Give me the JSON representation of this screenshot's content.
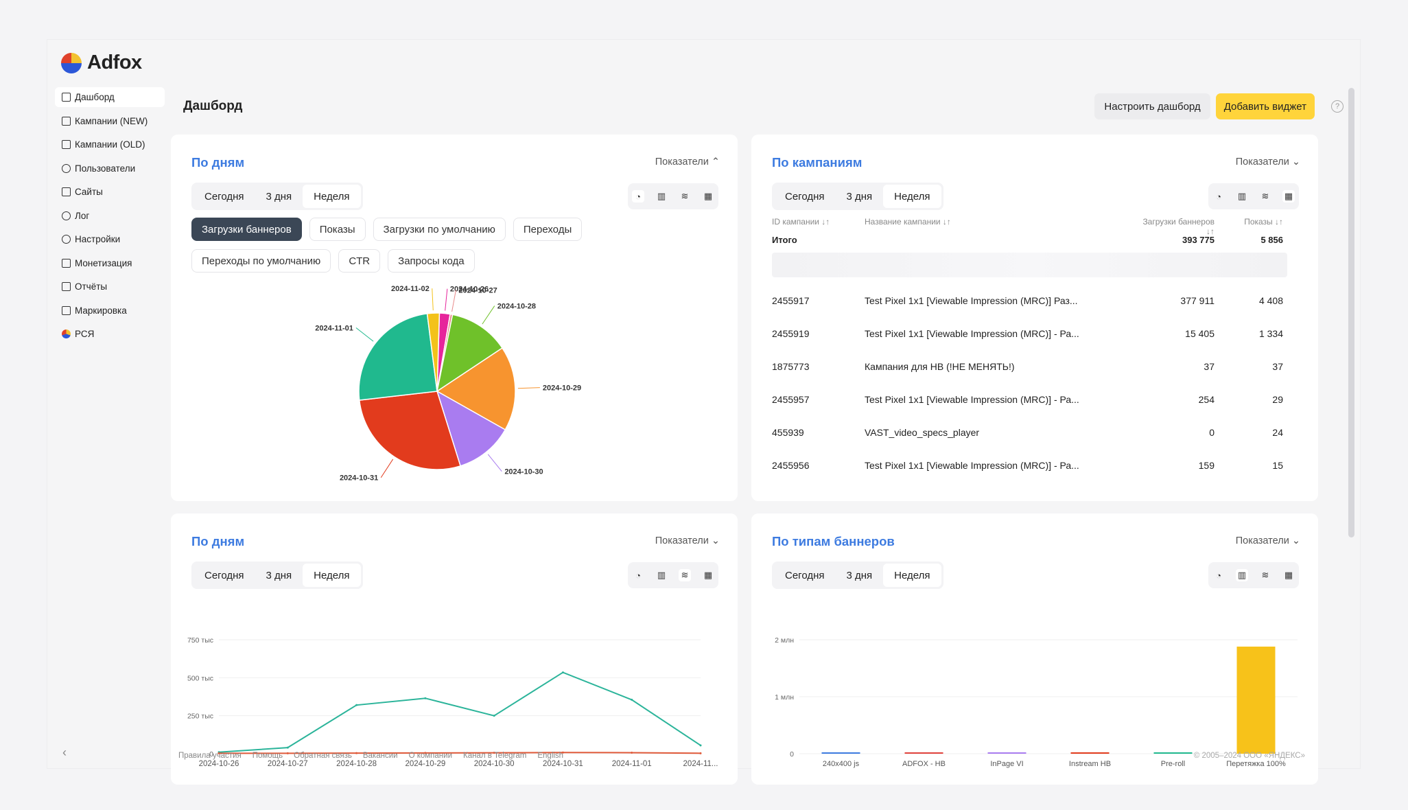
{
  "brand": {
    "name": "Adfox"
  },
  "sidebar": {
    "items": [
      {
        "label": "Дашборд",
        "icon": "dashboard-icon"
      },
      {
        "label": "Кампании (NEW)",
        "icon": "campaigns-icon"
      },
      {
        "label": "Кампании (OLD)",
        "icon": "folder-icon"
      },
      {
        "label": "Пользователи",
        "icon": "user-icon"
      },
      {
        "label": "Сайты",
        "icon": "sites-icon"
      },
      {
        "label": "Лог",
        "icon": "clock-icon"
      },
      {
        "label": "Настройки",
        "icon": "gear-icon"
      },
      {
        "label": "Монетизация",
        "icon": "wallet-icon"
      },
      {
        "label": "Отчёты",
        "icon": "reports-icon"
      },
      {
        "label": "Маркировка",
        "icon": "tag-icon"
      },
      {
        "label": "РСЯ",
        "icon": "rsya-icon"
      }
    ]
  },
  "header": {
    "title": "Дашборд",
    "setup_label": "Настроить дашборд",
    "add_label": "Добавить виджет",
    "help": "?"
  },
  "periods": [
    "Сегодня",
    "3 дня",
    "Неделя"
  ],
  "metrics_label": "Показатели",
  "widgets": {
    "pie": {
      "title": "По дням",
      "chips": [
        "Загрузки баннеров",
        "Показы",
        "Загрузки по умолчанию",
        "Переходы",
        "Переходы по умолчанию",
        "CTR",
        "Запросы кода"
      ]
    },
    "campaigns": {
      "title": "По кампаниям",
      "columns": [
        "ID кампании ↓↑",
        "Название кампании ↓↑",
        "Загрузки баннеров ↓↑",
        "Показы ↓↑"
      ],
      "total": {
        "label": "Итого",
        "loads": "393 775",
        "shows": "5 856"
      },
      "rows": [
        {
          "id": "2455917",
          "name": "Test Pixel 1x1 [Viewable Impression (MRC)] Раз...",
          "loads": "377 911",
          "shows": "4 408"
        },
        {
          "id": "2455919",
          "name": "Test Pixel 1x1 [Viewable Impression (MRC)] - Ра...",
          "loads": "15 405",
          "shows": "1 334"
        },
        {
          "id": "1875773",
          "name": "Кампания для НВ (!НЕ МЕНЯТЬ!)",
          "loads": "37",
          "shows": "37"
        },
        {
          "id": "2455957",
          "name": "Test Pixel 1x1 [Viewable Impression (MRC)] - Ра...",
          "loads": "254",
          "shows": "29"
        },
        {
          "id": "455939",
          "name": "VAST_video_specs_player",
          "loads": "0",
          "shows": "24"
        },
        {
          "id": "2455956",
          "name": "Test Pixel 1x1 [Viewable Impression (MRC)] - Ра...",
          "loads": "159",
          "shows": "15"
        }
      ]
    },
    "line": {
      "title": "По дням"
    },
    "bar": {
      "title": "По типам баннеров"
    }
  },
  "chart_data": [
    {
      "type": "pie",
      "categories": [
        "2024-10-26",
        "2024-10-27",
        "2024-10-28",
        "2024-10-29",
        "2024-10-30",
        "2024-10-31",
        "2024-11-01",
        "2024-11-02"
      ],
      "values": [
        2.2,
        0.5,
        12.5,
        17.5,
        12.0,
        28.0,
        24.8,
        2.5
      ],
      "colors": [
        "#e6259b",
        "#e88a8a",
        "#6fc12a",
        "#f7942f",
        "#a97cf0",
        "#e23b1d",
        "#20b98e",
        "#f3c21a"
      ]
    },
    {
      "type": "line",
      "categories": [
        "2024-10-26",
        "2024-10-27",
        "2024-10-28",
        "2024-10-29",
        "2024-10-30",
        "2024-10-31",
        "2024-11-01",
        "2024-11..."
      ],
      "series": [
        {
          "values": [
            10000,
            40000,
            320000,
            365000,
            250000,
            535000,
            355000,
            55000
          ],
          "color": "#2bb49a"
        },
        {
          "values": [
            3000,
            3000,
            4000,
            5000,
            6000,
            8000,
            7000,
            3000
          ],
          "color": "#e05a3a"
        }
      ],
      "yticks": [
        "0",
        "250 тыс",
        "500 тыс",
        "750 тыс"
      ],
      "ylim": [
        0,
        750000
      ]
    },
    {
      "type": "bar",
      "categories": [
        "240x400 js",
        "ADFOX - HB",
        "InPage VI",
        "Instream HB",
        "Pre-roll",
        "Перетяжка 100%"
      ],
      "values": [
        15000,
        12000,
        10000,
        14000,
        8000,
        1880000
      ],
      "colors": [
        "#3d7be0",
        "#e0423b",
        "#a97cf0",
        "#e23b1d",
        "#20b98e",
        "#f7c21a"
      ],
      "yticks": [
        "0",
        "1 млн",
        "2 млн"
      ],
      "ylim": [
        0,
        2000000
      ]
    }
  ],
  "footer": {
    "links": [
      "Правила участия",
      "Помощь",
      "Обратная связь",
      "Вакансии",
      "О компании",
      "Канал в Telegram",
      "English"
    ],
    "copyright": "© 2005–2024 ООО «ЯНДЕКС»"
  }
}
